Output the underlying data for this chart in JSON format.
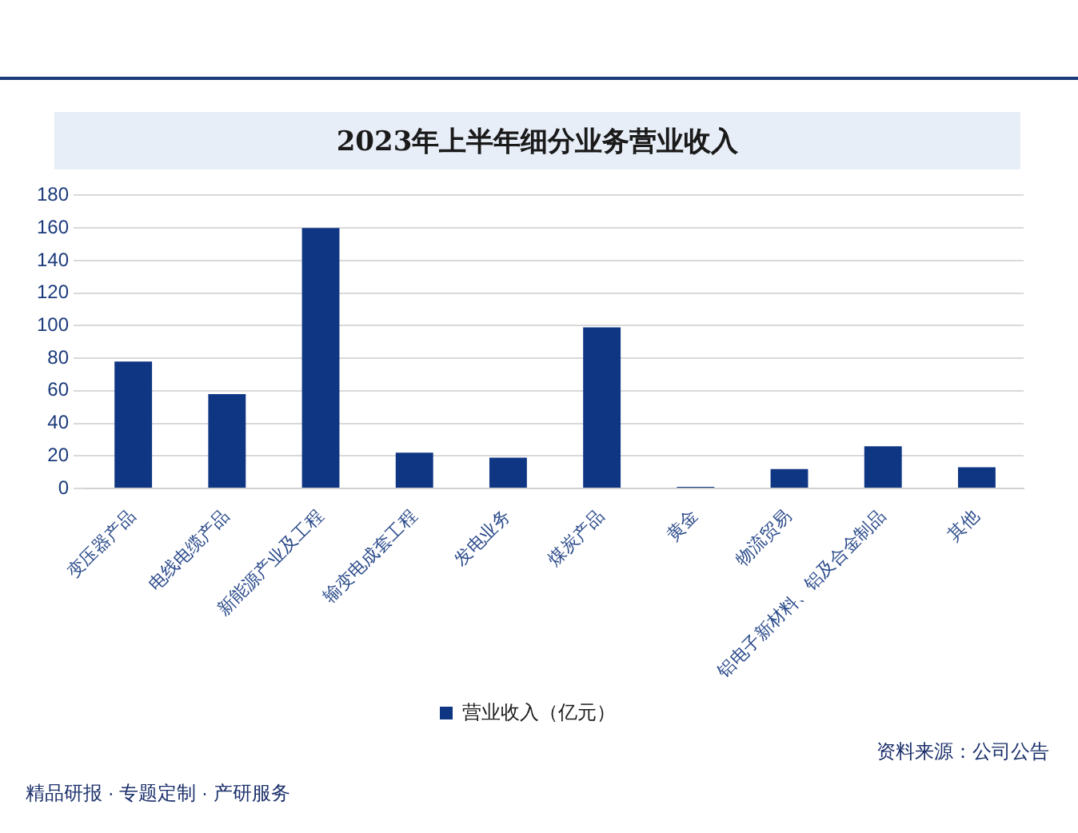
{
  "chart_data": {
    "type": "bar",
    "title": "2023年上半年细分业务营业收入",
    "categories": [
      "变压器产品",
      "电线电缆产品",
      "新能源产业及工程",
      "输变电成套工程",
      "发电业务",
      "煤炭产品",
      "黄金",
      "物流贸易",
      "铝电子新材料、铝及合金制品",
      "其他"
    ],
    "series": [
      {
        "name": "营业收入（亿元）",
        "color": "#0f3683",
        "values": [
          78,
          58,
          160,
          22,
          19,
          99,
          1,
          12,
          26,
          13
        ]
      }
    ],
    "ylim": [
      0,
      180
    ],
    "yticks": [
      0,
      20,
      40,
      60,
      80,
      100,
      120,
      140,
      160,
      180
    ],
    "grid": "y",
    "legend": "bottom",
    "annotations": [
      "资料来源：公司公告",
      "精品研报 · 专题定制 · 产研服务"
    ]
  }
}
